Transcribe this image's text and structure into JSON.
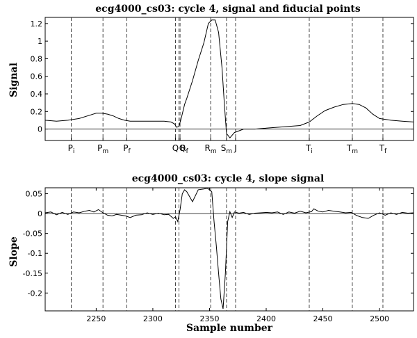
{
  "chart_data": [
    {
      "type": "line",
      "title": "ecg4000_cs03: cycle 4, signal and fiducial points",
      "ylabel": "Signal",
      "xlim": [
        2205,
        2530
      ],
      "ylim": [
        -0.13,
        1.27
      ],
      "yticks": [
        0,
        0.2,
        0.4,
        0.6,
        0.8,
        1,
        1.2
      ],
      "ytick_labels": [
        "0",
        "0.2",
        "0.4",
        "0.6",
        "0.8",
        "1",
        "1.2"
      ],
      "grid": false,
      "zero_line": true,
      "series": [
        {
          "x": [
            2205,
            2215,
            2225,
            2235,
            2245,
            2250,
            2255,
            2260,
            2265,
            2270,
            2275,
            2280,
            2290,
            2300,
            2310,
            2316,
            2319,
            2321,
            2323,
            2325,
            2328,
            2330,
            2335,
            2340,
            2345,
            2349,
            2352,
            2355,
            2358,
            2361,
            2363,
            2365,
            2368,
            2372,
            2380,
            2390,
            2400,
            2410,
            2420,
            2430,
            2438,
            2445,
            2452,
            2460,
            2468,
            2476,
            2482,
            2488,
            2494,
            2500,
            2510,
            2520,
            2530
          ],
          "y": [
            0.1,
            0.09,
            0.1,
            0.12,
            0.16,
            0.18,
            0.18,
            0.17,
            0.15,
            0.12,
            0.1,
            0.09,
            0.09,
            0.09,
            0.09,
            0.08,
            0.06,
            0.02,
            0.03,
            0.12,
            0.28,
            0.35,
            0.55,
            0.78,
            0.98,
            1.2,
            1.24,
            1.24,
            1.1,
            0.7,
            0.3,
            -0.05,
            -0.1,
            -0.04,
            0.0,
            0.0,
            0.01,
            0.02,
            0.03,
            0.04,
            0.08,
            0.15,
            0.21,
            0.25,
            0.28,
            0.29,
            0.28,
            0.24,
            0.17,
            0.12,
            0.1,
            0.09,
            0.08
          ]
        }
      ],
      "fiducials": [
        {
          "name": "P",
          "sub": "i",
          "x": 2228
        },
        {
          "name": "P",
          "sub": "m",
          "x": 2256
        },
        {
          "name": "P",
          "sub": "f",
          "x": 2277
        },
        {
          "name": "Q",
          "sub": "",
          "x": 2320
        },
        {
          "name": "Q",
          "sub": "",
          "x": 2323
        },
        {
          "name": "R",
          "sub": "f",
          "x": 2324
        },
        {
          "name": "R",
          "sub": "m",
          "x": 2351
        },
        {
          "name": "S",
          "sub": "m",
          "x": 2365
        },
        {
          "name": "J",
          "sub": "",
          "x": 2373
        },
        {
          "name": "T",
          "sub": "i",
          "x": 2438
        },
        {
          "name": "T",
          "sub": "m",
          "x": 2476
        },
        {
          "name": "T",
          "sub": "f",
          "x": 2503
        }
      ]
    },
    {
      "type": "line",
      "title": "ecg4000_cs03: cycle 4, slope signal",
      "ylabel": "Slope",
      "xlabel": "Sample number",
      "xlim": [
        2205,
        2530
      ],
      "ylim": [
        -0.245,
        0.065
      ],
      "xticks": [
        2250,
        2300,
        2350,
        2400,
        2450,
        2500
      ],
      "xtick_labels": [
        "2250",
        "2300",
        "2350",
        "2400",
        "2450",
        "2500"
      ],
      "yticks": [
        0.05,
        0,
        -0.05,
        -0.1,
        -0.15,
        -0.2
      ],
      "ytick_labels": [
        "0.05",
        "0",
        "-0.05",
        "-0.1",
        "-0.15",
        "-0.2"
      ],
      "grid": false,
      "zero_line": true,
      "vlines": [
        2228,
        2256,
        2277,
        2320,
        2323,
        2351,
        2365,
        2373,
        2438,
        2476,
        2503
      ],
      "series": [
        {
          "x": [
            2205,
            2210,
            2215,
            2220,
            2225,
            2230,
            2235,
            2240,
            2244,
            2248,
            2252,
            2256,
            2260,
            2264,
            2268,
            2272,
            2276,
            2280,
            2285,
            2290,
            2295,
            2300,
            2305,
            2310,
            2314,
            2318,
            2320,
            2322,
            2324,
            2326,
            2328,
            2330,
            2335,
            2340,
            2345,
            2348,
            2350,
            2352,
            2354,
            2356,
            2358,
            2360,
            2362,
            2364,
            2366,
            2368,
            2370,
            2372,
            2376,
            2380,
            2385,
            2390,
            2395,
            2400,
            2405,
            2410,
            2415,
            2420,
            2425,
            2430,
            2435,
            2440,
            2442,
            2446,
            2450,
            2455,
            2460,
            2465,
            2470,
            2475,
            2480,
            2485,
            2490,
            2495,
            2500,
            2505,
            2510,
            2515,
            2520,
            2525,
            2530
          ],
          "y": [
            0.002,
            0.004,
            -0.003,
            0.003,
            -0.002,
            0.004,
            0.002,
            0.006,
            0.008,
            0.004,
            0.01,
            0.002,
            -0.004,
            -0.006,
            -0.002,
            -0.004,
            -0.006,
            -0.01,
            -0.004,
            -0.003,
            0.002,
            -0.002,
            0.001,
            -0.003,
            -0.002,
            -0.012,
            -0.008,
            -0.02,
            0.01,
            0.05,
            0.06,
            0.055,
            0.03,
            0.06,
            0.062,
            0.064,
            0.06,
            0.055,
            -0.02,
            -0.08,
            -0.15,
            -0.215,
            -0.24,
            -0.15,
            -0.02,
            0.005,
            -0.01,
            0.004,
            0.001,
            0.003,
            -0.002,
            0.001,
            0.002,
            0.003,
            0.002,
            0.004,
            -0.002,
            0.004,
            0.001,
            0.006,
            0.002,
            0.005,
            0.012,
            0.006,
            0.004,
            0.008,
            0.006,
            0.004,
            0.002,
            0.003,
            -0.005,
            -0.01,
            -0.012,
            -0.004,
            0.002,
            -0.004,
            0.002,
            -0.002,
            0.003,
            0.001,
            0.002
          ]
        }
      ]
    }
  ]
}
